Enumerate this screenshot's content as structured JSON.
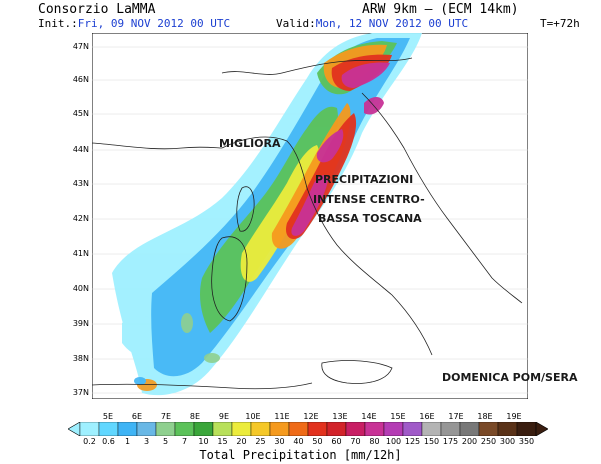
{
  "header": {
    "org": "Consorzio LaMMA",
    "init_label": "Init.:",
    "init_value": "Fri, 09 NOV 2012   00 UTC",
    "model": "ARW 9km — (ECM 14km)",
    "valid_label": "Valid:",
    "valid_value": "Mon, 12 NOV 2012   00 UTC",
    "lead": "T=+72h"
  },
  "axes": {
    "lat": [
      "47N",
      "46N",
      "45N",
      "44N",
      "43N",
      "42N",
      "41N",
      "40N",
      "39N",
      "38N",
      "37N"
    ],
    "lon": [
      "5E",
      "6E",
      "7E",
      "8E",
      "9E",
      "10E",
      "11E",
      "12E",
      "13E",
      "14E",
      "15E",
      "16E",
      "17E",
      "18E",
      "19E"
    ]
  },
  "annotations": {
    "migliora": "MIGLIORA",
    "precip_1": "PRECIPITAZIONI",
    "precip_2": "INTENSE CENTRO-",
    "precip_3": "BASSA TOSCANA",
    "domenica": "DOMENICA POM/SERA"
  },
  "legend": {
    "title": "Total Precipitation [mm/12h]",
    "labels": [
      "0.2",
      "0.6",
      "1",
      "3",
      "5",
      "7",
      "10",
      "15",
      "20",
      "25",
      "30",
      "40",
      "50",
      "60",
      "70",
      "80",
      "100",
      "125",
      "150",
      "175",
      "200",
      "250",
      "300",
      "350"
    ],
    "colors": [
      "#9ff0ff",
      "#61d7ff",
      "#3fb4f5",
      "#69b8e6",
      "#8fd08f",
      "#5cc25a",
      "#3aa63a",
      "#b8e05a",
      "#ecec3c",
      "#f5c828",
      "#f59a1e",
      "#ef6b18",
      "#e2321e",
      "#d2232a",
      "#c81e64",
      "#c83296",
      "#b43cb4",
      "#a05ac8",
      "#b4b4b4",
      "#969696",
      "#787878",
      "#7a4a28",
      "#5a3218",
      "#3a1e10"
    ]
  }
}
